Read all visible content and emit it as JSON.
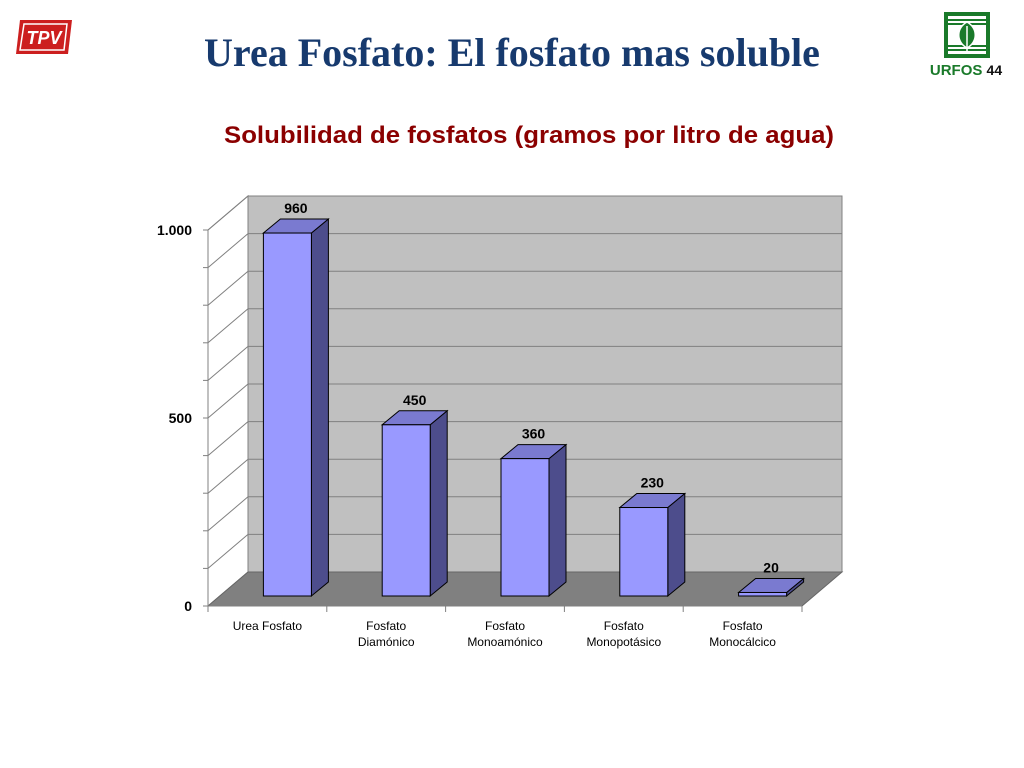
{
  "slide": {
    "title": "Urea Fosfato: El fosfato mas soluble",
    "left_logo_text": "TPV",
    "right_logo_name": "URFOS",
    "right_logo_number": "44"
  },
  "colors": {
    "title": "#173a6e",
    "chart_title": "#8b0000",
    "bar_front": "#9999ff",
    "bar_side": "#4d4d8c",
    "bar_top": "#7a7ad0",
    "back_wall": "#c0c0c0",
    "floor": "#808080",
    "logo_red": "#cc1f1f",
    "logo_green": "#1a7a2a"
  },
  "chart_data": {
    "type": "bar",
    "title": "Solubilidad de fosfatos (gramos por litro de agua)",
    "categories": [
      [
        "Urea Fosfato"
      ],
      [
        "Fosfato",
        "Diamónico"
      ],
      [
        "Fosfato",
        "Monoamónico"
      ],
      [
        "Fosfato",
        "Monopotásico"
      ],
      [
        "Fosfato",
        "Monocálcico"
      ]
    ],
    "values": [
      960,
      450,
      360,
      230,
      20
    ],
    "data_labels": [
      "960",
      "450",
      "360",
      "230",
      "20"
    ],
    "y_ticks": [
      0,
      500,
      1000
    ],
    "y_tick_labels": [
      "0",
      "500",
      "1.000"
    ],
    "ylim": [
      0,
      1000
    ],
    "grid": true,
    "style": "3d-column"
  }
}
